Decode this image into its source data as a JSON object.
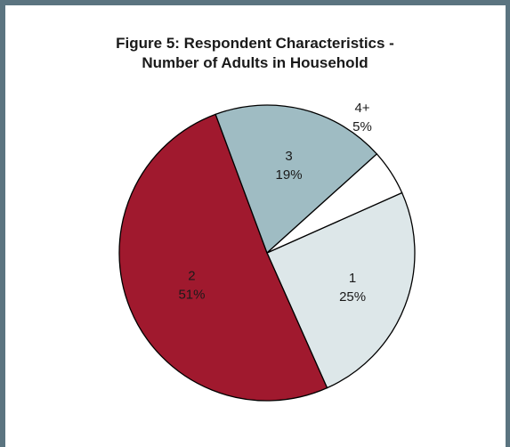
{
  "chart_data": {
    "type": "pie",
    "title_line1": "Figure 5: Respondent Characteristics -",
    "title_line2": "Number of Adults in Household",
    "slices": [
      {
        "label": "1",
        "value": 25,
        "pct_label": "25%",
        "color": "#dde7e9"
      },
      {
        "label": "2",
        "value": 51,
        "pct_label": "51%",
        "color": "#a0192e"
      },
      {
        "label": "3",
        "value": 19,
        "pct_label": "19%",
        "color": "#9fbcc3"
      },
      {
        "label": "4+",
        "value": 5,
        "pct_label": "5%",
        "color": "#ffffff"
      }
    ]
  }
}
